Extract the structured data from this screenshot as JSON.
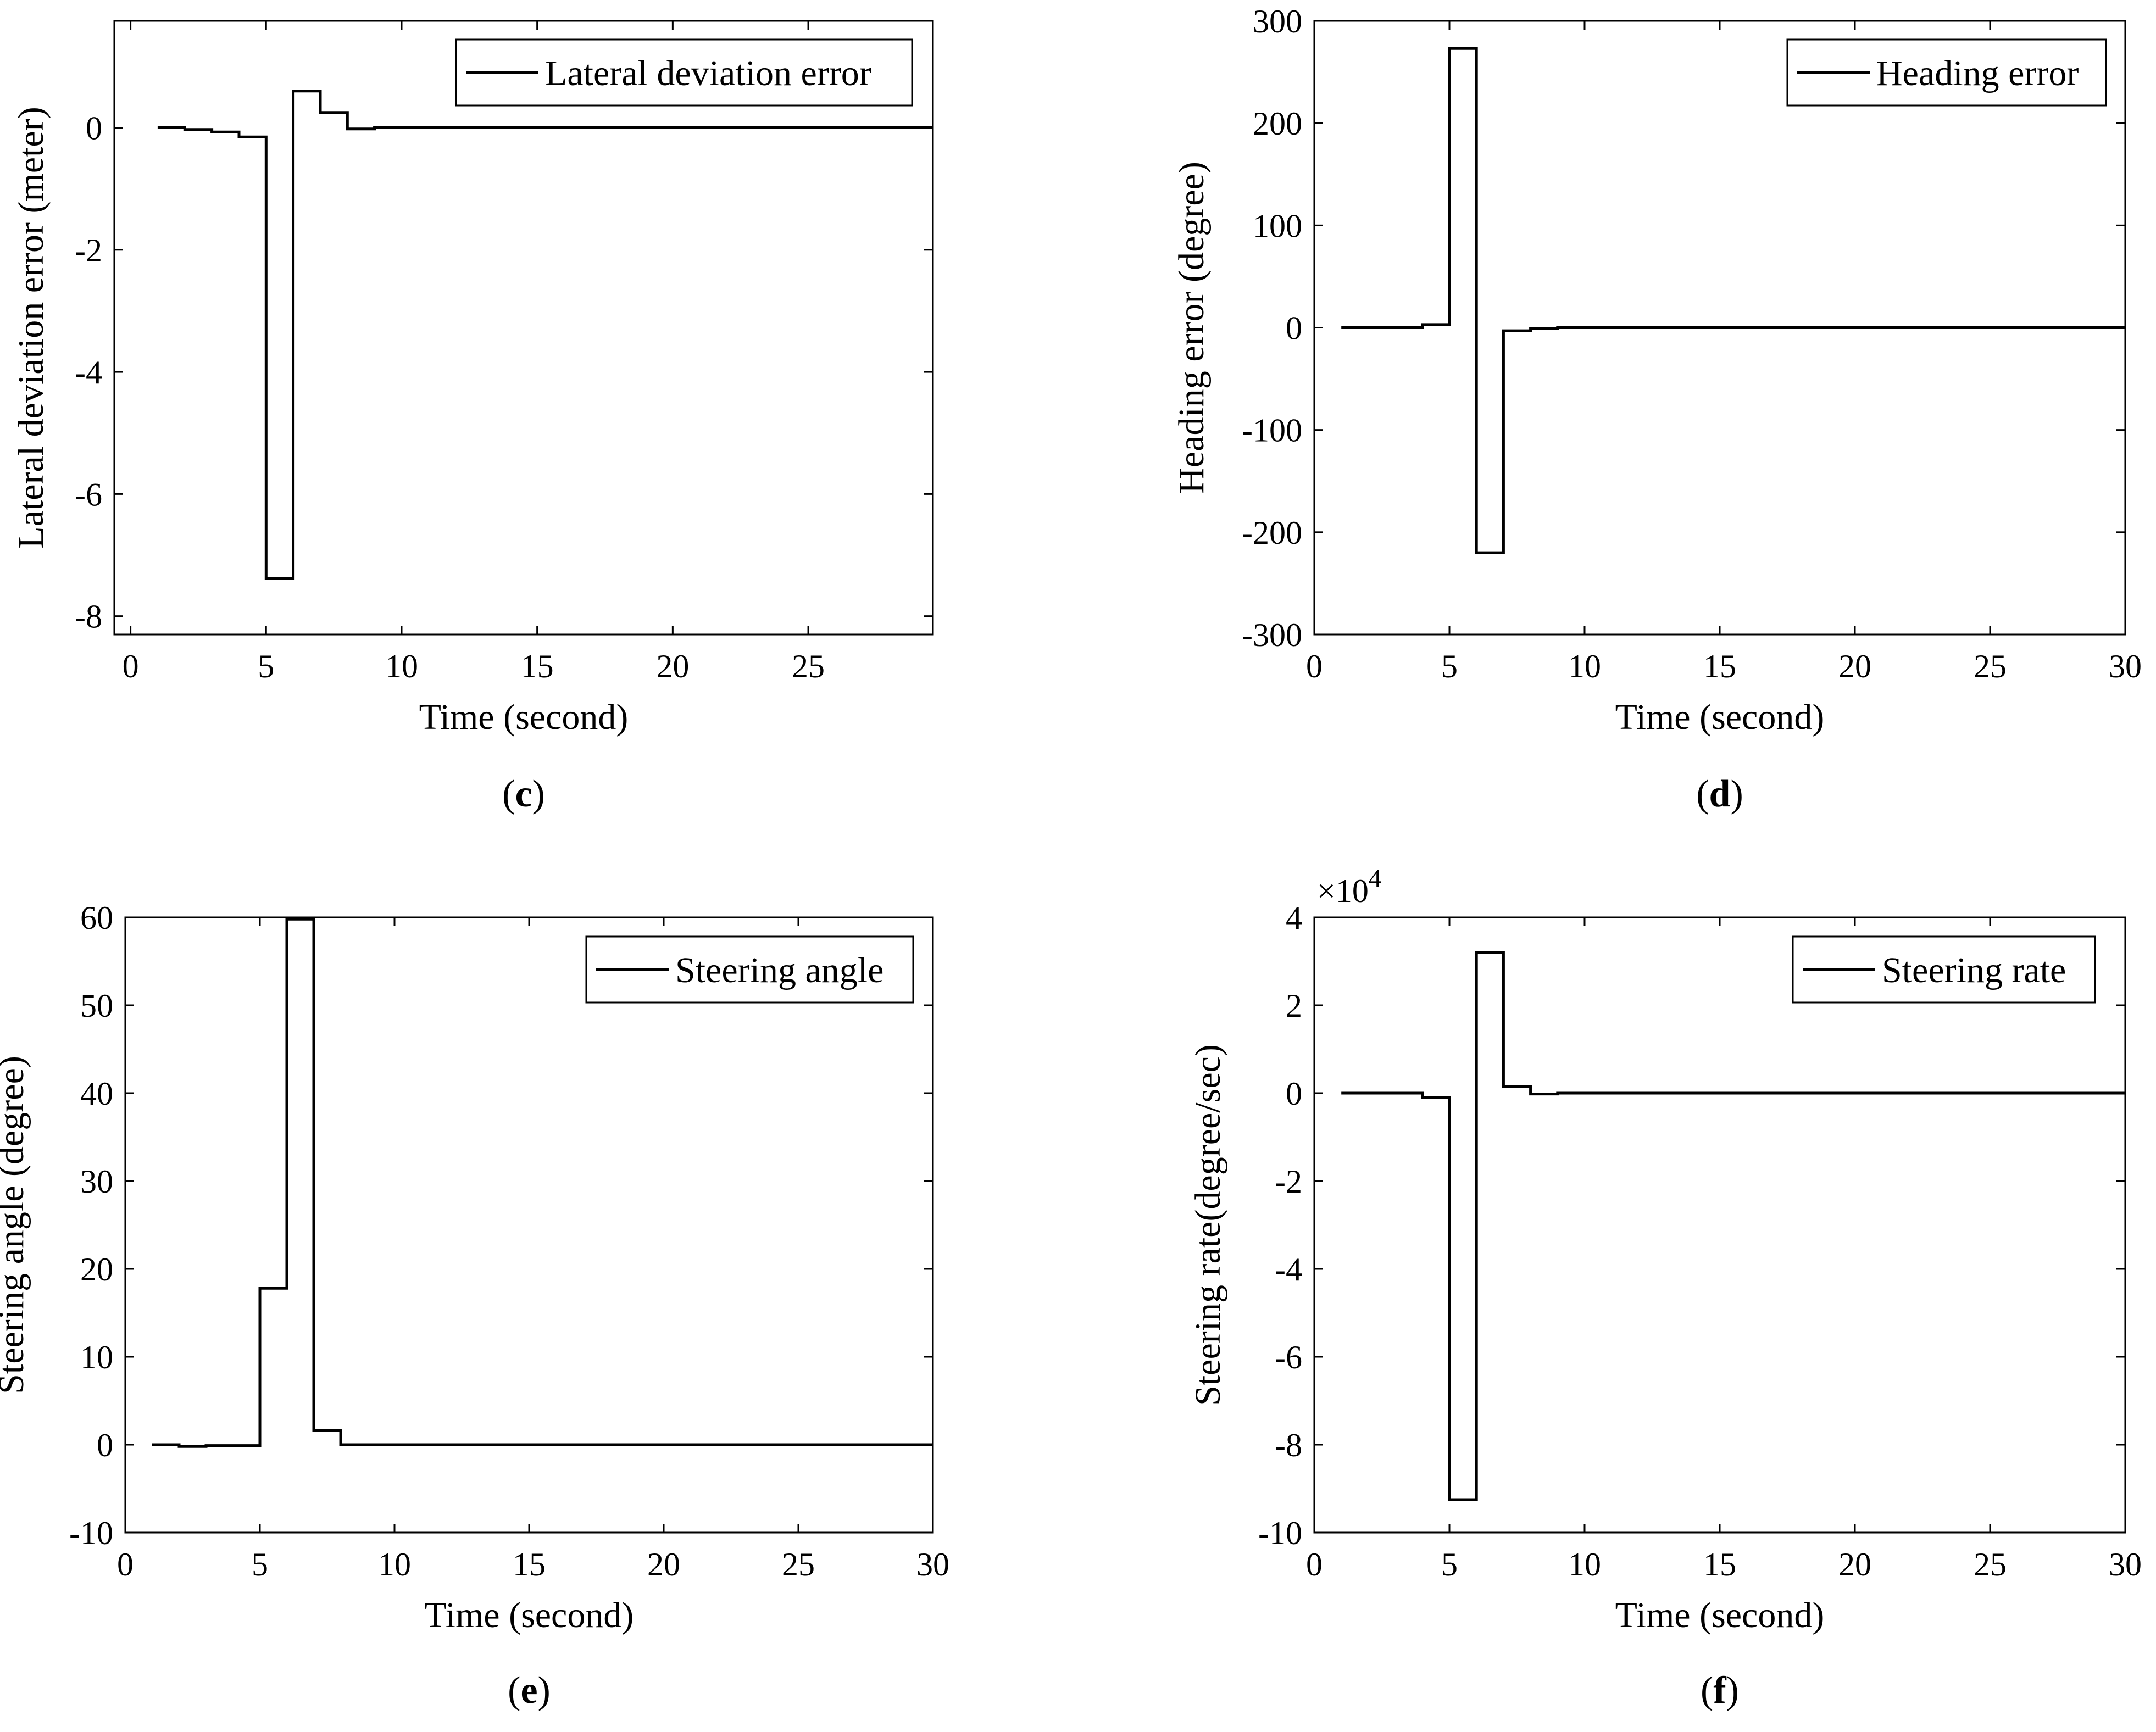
{
  "chart_data": [
    {
      "type": "line",
      "panel_label": {
        "open": "(",
        "letter": "c",
        "close": ")"
      },
      "xlabel": "Time (second)",
      "ylabel": "Lateral deviation error (meter)",
      "xlim": [
        -0.6,
        29.6
      ],
      "ylim": [
        -8.3,
        1.75
      ],
      "xticks": [
        0,
        5,
        10,
        15,
        20,
        25
      ],
      "yticks": [
        0,
        -2,
        -4,
        -6,
        -8
      ],
      "exponent": "",
      "legend": {
        "position": "top-right"
      },
      "series": [
        {
          "name": "Lateral deviation error",
          "x": [
            1,
            2,
            2,
            3,
            3,
            4,
            4,
            5,
            5,
            6,
            6,
            7,
            7,
            8,
            8,
            9,
            9,
            29.6
          ],
          "y": [
            0,
            0,
            -0.03,
            -0.03,
            -0.07,
            -0.07,
            -0.15,
            -0.15,
            -7.38,
            -7.38,
            0.6,
            0.6,
            0.25,
            0.25,
            -0.02,
            -0.02,
            0,
            0
          ]
        }
      ]
    },
    {
      "type": "line",
      "panel_label": {
        "open": "(",
        "letter": "d",
        "close": ")"
      },
      "xlabel": "Time (second)",
      "ylabel": "Heading error (degree)",
      "xlim": [
        0,
        30
      ],
      "ylim": [
        -300,
        300
      ],
      "xticks": [
        0,
        5,
        10,
        15,
        20,
        25,
        30
      ],
      "yticks": [
        300,
        200,
        100,
        0,
        -100,
        -200,
        -300
      ],
      "exponent": "",
      "legend": {
        "position": "top-right"
      },
      "series": [
        {
          "name": "Heading error",
          "x": [
            1,
            4,
            4,
            5,
            5,
            6,
            6,
            7,
            7,
            8,
            8,
            9,
            9,
            30
          ],
          "y": [
            0,
            0,
            3,
            3,
            273,
            273,
            -220,
            -220,
            -3,
            -3,
            -1,
            -1,
            0,
            0
          ]
        }
      ]
    },
    {
      "type": "line",
      "panel_label": {
        "open": "(",
        "letter": "e",
        "close": ")"
      },
      "xlabel": "Time (second)",
      "ylabel": "Steering angle (degree)",
      "xlim": [
        0,
        30
      ],
      "ylim": [
        -10,
        60
      ],
      "xticks": [
        0,
        5,
        10,
        15,
        20,
        25,
        30
      ],
      "yticks": [
        60,
        50,
        40,
        30,
        20,
        10,
        0,
        -10
      ],
      "exponent": "",
      "legend": {
        "position": "top-right"
      },
      "series": [
        {
          "name": "Steering angle",
          "x": [
            1,
            2,
            2,
            3,
            3,
            5,
            5,
            6,
            6,
            7,
            7,
            8,
            8,
            30
          ],
          "y": [
            0,
            0,
            -0.2,
            -0.2,
            -0.1,
            -0.1,
            17.8,
            17.8,
            59.8,
            59.8,
            1.6,
            1.6,
            0,
            0
          ]
        }
      ]
    },
    {
      "type": "line",
      "panel_label": {
        "open": "(",
        "letter": "f",
        "close": ")"
      },
      "xlabel": "Time (second)",
      "ylabel": "Steering rate(degree/sec)",
      "xlim": [
        0,
        30
      ],
      "ylim": [
        -10,
        4
      ],
      "xticks": [
        0,
        5,
        10,
        15,
        20,
        25,
        30
      ],
      "yticks": [
        4,
        2,
        0,
        -2,
        -4,
        -6,
        -8,
        -10
      ],
      "exponent": "×10^4",
      "legend": {
        "position": "top-right"
      },
      "series": [
        {
          "name": "Steering rate",
          "x": [
            1,
            4,
            4,
            5,
            5,
            6,
            6,
            7,
            7,
            8,
            8,
            9,
            9,
            30
          ],
          "y": [
            0,
            0,
            -0.1,
            -0.1,
            -9.25,
            -9.25,
            3.2,
            3.2,
            0.15,
            0.15,
            -0.02,
            -0.02,
            0,
            0
          ]
        }
      ]
    }
  ]
}
